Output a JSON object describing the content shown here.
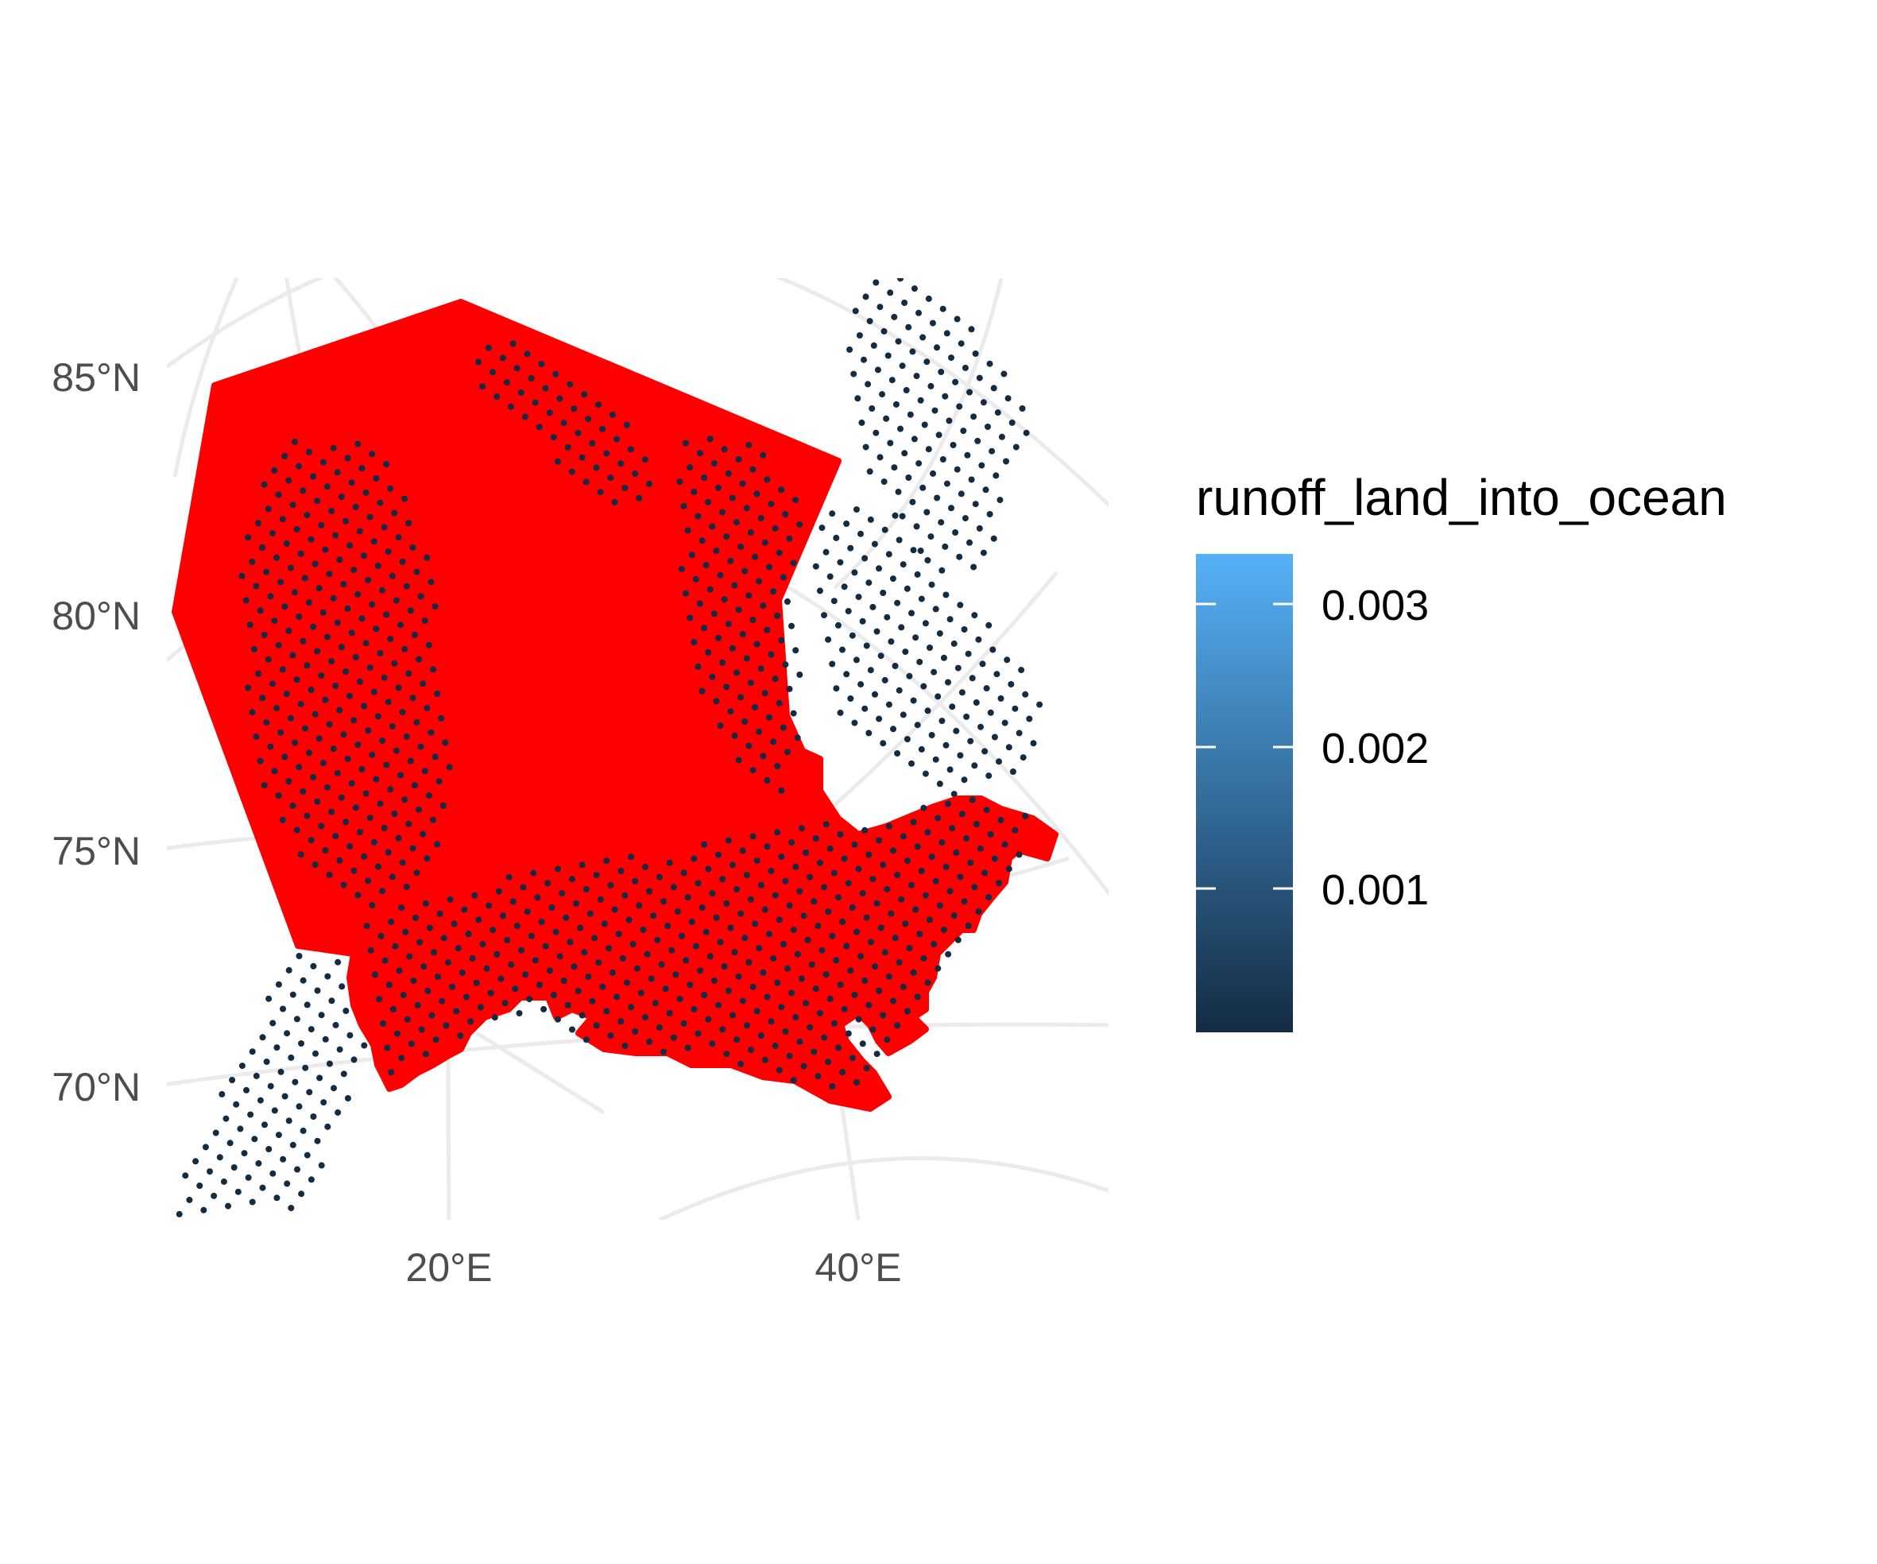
{
  "map": {
    "lat_labels": [
      "85°N",
      "80°N",
      "75°N",
      "70°N"
    ],
    "lon_labels": [
      "20°E",
      "40°E"
    ],
    "polygon_fill": "#ff0000",
    "grid_color": "#ebebeb",
    "point_color": "#132b43"
  },
  "legend": {
    "title": "runoff_land_into_ocean",
    "tick_labels": [
      "0.003",
      "0.002",
      "0.001"
    ],
    "gradient_low": "#132b43",
    "gradient_high": "#56b1f7"
  }
}
